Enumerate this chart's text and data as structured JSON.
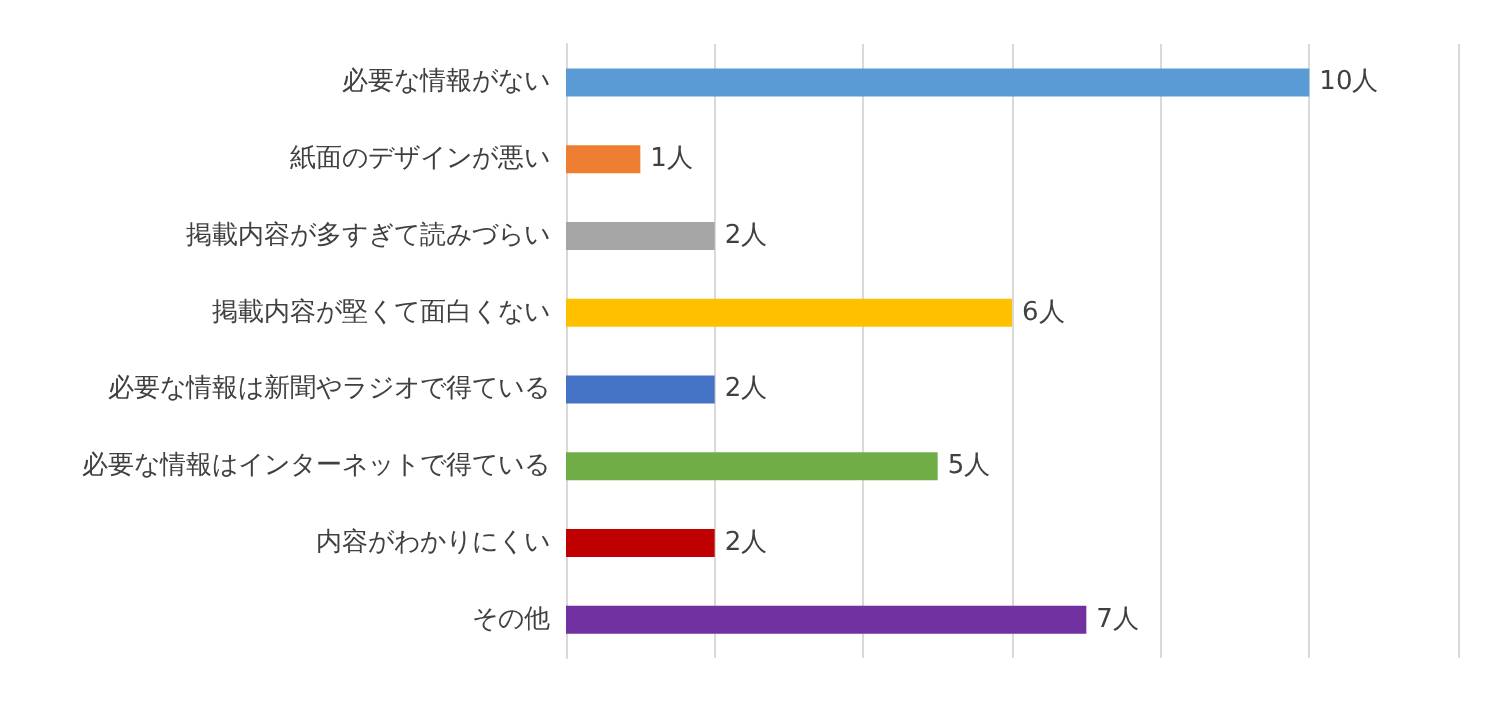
{
  "chart_data": {
    "type": "bar",
    "orientation": "horizontal",
    "categories": [
      "必要な情報がない",
      "紙面のデザインが悪い",
      "掲載内容が多すぎて読みづらい",
      "掲載内容が堅くて面白くない",
      "必要な情報は新聞やラジオで得ている",
      "必要な情報はインターネットで得ている",
      "内容がわかりにくい",
      "その他"
    ],
    "values": [
      10,
      1,
      2,
      6,
      2,
      5,
      2,
      7
    ],
    "value_labels": [
      "10人",
      "1人",
      "2人",
      "6人",
      "2人",
      "5人",
      "2人",
      "7人"
    ],
    "colors": [
      "#5b9bd5",
      "#ed7d31",
      "#a5a5a5",
      "#ffc000",
      "#4472c4",
      "#70ad47",
      "#c00000",
      "#7030a0"
    ],
    "xlim": [
      0,
      12
    ],
    "xticks": [
      {
        "value": 0,
        "label": null
      },
      {
        "value": 2,
        "label": null
      },
      {
        "value": 4,
        "label": null
      },
      {
        "value": 6,
        "label": null
      },
      {
        "value": 8,
        "label": null
      },
      {
        "value": 10,
        "label": null
      },
      {
        "value": 12,
        "label": null
      }
    ],
    "tick_labels": "y",
    "grid": "x"
  }
}
